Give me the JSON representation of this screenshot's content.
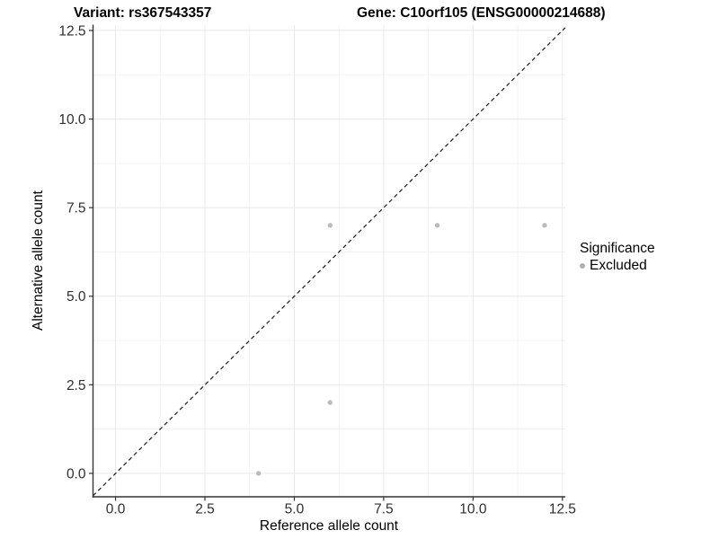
{
  "header": {
    "variant_title": "Variant: rs367543357",
    "gene_title": "Gene: C10orf105 (ENSG00000214688)"
  },
  "legend": {
    "title": "Significance",
    "items": [
      {
        "label": "Excluded",
        "color": "#b0b0b0"
      }
    ]
  },
  "chart_data": {
    "type": "scatter",
    "title_left": "Variant: rs367543357",
    "title_right": "Gene: C10orf105 (ENSG00000214688)",
    "xlabel": "Reference allele count",
    "ylabel": "Alternative allele count",
    "xlim": [
      -0.63,
      12.58
    ],
    "ylim": [
      -0.66,
      12.65
    ],
    "x_ticks": {
      "values": [
        0,
        2.5,
        5,
        7.5,
        10,
        12.5
      ],
      "labels": [
        "0.0",
        "2.5",
        "5.0",
        "7.5",
        "10.0",
        "12.5"
      ]
    },
    "y_ticks": {
      "values": [
        0,
        2.5,
        5,
        7.5,
        10,
        12.5
      ],
      "labels": [
        "0.0",
        "2.5",
        "5.0",
        "7.5",
        "10.0",
        "12.5"
      ]
    },
    "grid": "major+minor",
    "legend_position": "right",
    "series": [
      {
        "name": "Excluded",
        "color": "#bbbbbb",
        "points": [
          {
            "x": 6,
            "y": 7
          },
          {
            "x": 9,
            "y": 7
          },
          {
            "x": 12,
            "y": 7
          },
          {
            "x": 6,
            "y": 2
          },
          {
            "x": 4,
            "y": 0
          }
        ]
      }
    ],
    "reference_line": {
      "type": "identity",
      "style": "dashed",
      "color": "#1a1a1a"
    }
  }
}
